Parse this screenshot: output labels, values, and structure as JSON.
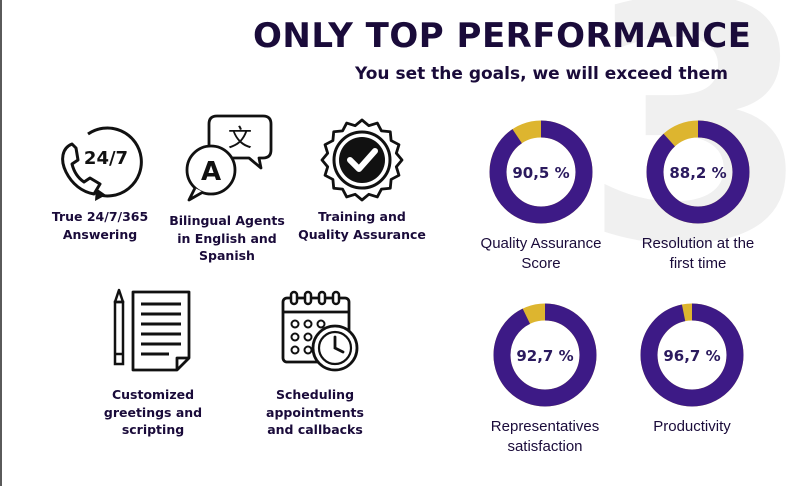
{
  "header": {
    "title": "ONLY TOP PERFORMANCE",
    "subtitle": "You set the goals, we will exceed them"
  },
  "features": [
    {
      "label": "True 24/7/365\nAnswering",
      "icon": "phone-24-7-icon",
      "icon_text": "24/7"
    },
    {
      "label": "Bilingual Agents\nin English and\nSpanish",
      "icon": "translation-chat-icon",
      "icon_text_top": "文",
      "icon_text_bottom": "A"
    },
    {
      "label": "Training and\nQuality Assurance",
      "icon": "quality-badge-check-icon"
    },
    {
      "label": "Customized\ngreetings and\nscripting",
      "icon": "script-pencil-icon"
    },
    {
      "label": "Scheduling\nappointments\nand callbacks",
      "icon": "calendar-clock-icon"
    }
  ],
  "metrics": [
    {
      "value_text": "90,5 %",
      "value": 90.5,
      "label": "Quality Assurance\nScore"
    },
    {
      "value_text": "88,2 %",
      "value": 88.2,
      "label": "Resolution at the\nfirst time"
    },
    {
      "value_text": "92,7 %",
      "value": 92.7,
      "label": "Representatives\nsatisfaction"
    },
    {
      "value_text": "96,7 %",
      "value": 96.7,
      "label": "Productivity"
    }
  ],
  "colors": {
    "donut_fill": "#3d1a86",
    "donut_remainder": "#ddb52f",
    "text_dark": "#1a0b3a",
    "watermark": "#f0f0f0"
  }
}
